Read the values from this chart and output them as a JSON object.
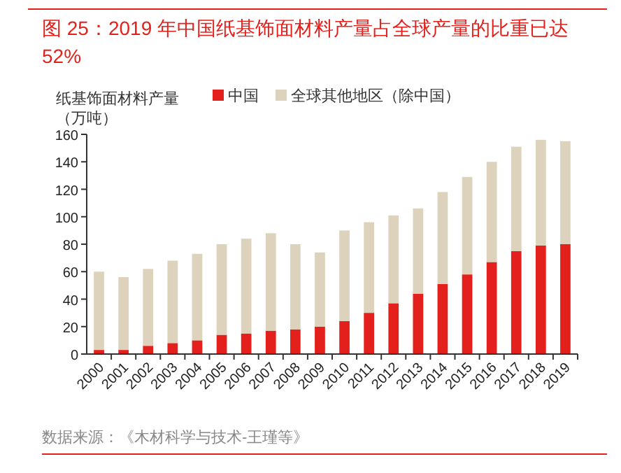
{
  "chart_data": {
    "type": "bar",
    "stacked": true,
    "title": "图 25：2019 年中国纸基饰面材料产量占全球产量的比重已达 52%",
    "ylabel": "纸基饰面材料产量（万吨）",
    "annotations": [
      "数据来源：《木材科学与技术-王瑾等》"
    ],
    "categories": [
      "2000",
      "2001",
      "2002",
      "2003",
      "2004",
      "2005",
      "2006",
      "2007",
      "2008",
      "2009",
      "2010",
      "2011",
      "2012",
      "2013",
      "2014",
      "2015",
      "2016",
      "2017",
      "2018",
      "2019"
    ],
    "series": [
      {
        "name": "中国",
        "color": "#e3201b",
        "values": [
          3,
          3,
          6,
          8,
          10,
          14,
          15,
          17,
          18,
          20,
          24,
          30,
          37,
          44,
          51,
          58,
          67,
          75,
          79,
          80
        ]
      },
      {
        "name": "全球其他地区（除中国）",
        "color": "#ddd3bc",
        "values": [
          57,
          53,
          56,
          60,
          63,
          66,
          69,
          71,
          62,
          54,
          66,
          66,
          64,
          62,
          67,
          71,
          73,
          76,
          77,
          75
        ]
      }
    ],
    "ylim": [
      0,
      160
    ],
    "yticks": [
      0,
      20,
      40,
      60,
      80,
      100,
      120,
      140,
      160
    ],
    "grid": false,
    "legend": "top"
  }
}
